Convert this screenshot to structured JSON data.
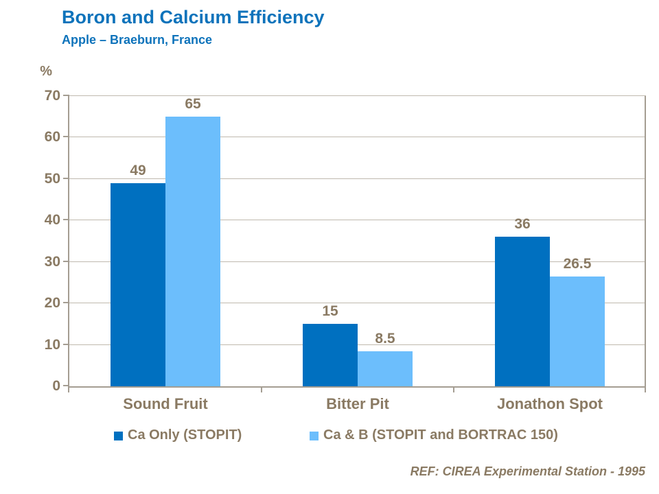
{
  "header": {
    "title": "Boron and Calcium Efficiency",
    "subtitle": "Apple – Braeburn, France"
  },
  "chart_data": {
    "type": "bar",
    "title": "Boron and Calcium Efficiency",
    "subtitle": "Apple – Braeburn, France",
    "ylabel": "%",
    "xlabel": "",
    "ylim": [
      0,
      70
    ],
    "ytick_step": 10,
    "grid": true,
    "legend_position": "bottom",
    "categories": [
      "Sound Fruit",
      "Bitter Pit",
      "Jonathon Spot"
    ],
    "series": [
      {
        "name": "Ca Only (STOPIT)",
        "color": "#0070C0",
        "values": [
          49,
          15,
          36
        ]
      },
      {
        "name": "Ca & B (STOPIT and BORTRAC 150)",
        "color": "#6CBEFC",
        "values": [
          65,
          8.5,
          26.5
        ]
      }
    ]
  },
  "footer": {
    "reference": "REF: CIREA Experimental Station - 1995"
  },
  "colors": {
    "title_blue": "#0E73BB",
    "chart_text_brown": "#8A7A63",
    "axis_gray": "#A49D92",
    "gridline_gray": "#BFB9AE",
    "series1_dark_blue": "#0070C0",
    "series2_light_blue": "#6CBEFC"
  }
}
